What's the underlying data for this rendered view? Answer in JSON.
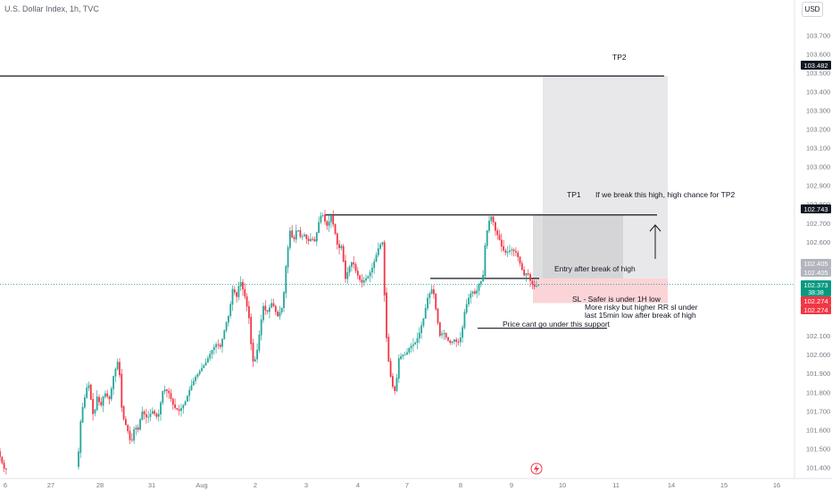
{
  "header": {
    "title": "U.S. Dollar Index, 1h, TVC",
    "currency": "USD"
  },
  "colors": {
    "up": "#26a69a",
    "down": "#f23645",
    "axis_text": "#787b86",
    "tp_zone": "#e0e0e3",
    "sl_zone": "#f9c9cd",
    "current": "#089981",
    "tag_dark": "#131722",
    "tag_red": "#f23645",
    "tag_green": "#089981",
    "tag_grey": "#b2b5be"
  },
  "chart_data": {
    "type": "candlestick",
    "symbol": "U.S. Dollar Index",
    "interval": "1h",
    "source": "TVC",
    "ylim": [
      101.35,
      103.82
    ],
    "y_ticks": [
      "103.700",
      "103.600",
      "103.500",
      "103.400",
      "103.300",
      "103.200",
      "103.100",
      "103.000",
      "102.900",
      "102.800",
      "102.700",
      "102.600",
      "102.500",
      "102.100",
      "102.000",
      "101.900",
      "101.800",
      "101.700",
      "101.600",
      "101.500",
      "101.400"
    ],
    "x_ticks": [
      "6",
      "27",
      "28",
      "31",
      "Aug",
      "2",
      "3",
      "4",
      "7",
      "8",
      "9",
      "10",
      "11",
      "14",
      "15",
      "16"
    ],
    "price_tags": [
      {
        "id": "tp2",
        "value": "103.482",
        "style": "dark"
      },
      {
        "id": "tp1",
        "value": "102.743",
        "style": "dark"
      },
      {
        "id": "entry-a",
        "value": "102.405",
        "style": "grey"
      },
      {
        "id": "entry-b",
        "value": "102.405",
        "style": "grey"
      },
      {
        "id": "current",
        "value": "102.373",
        "sub": "38:38",
        "style": "green"
      },
      {
        "id": "sl-a",
        "value": "102.274",
        "style": "red"
      },
      {
        "id": "sl-b",
        "value": "102.274",
        "style": "red"
      }
    ],
    "levels": {
      "tp2": 103.482,
      "tp1": 102.743,
      "entry": 102.405,
      "current": 102.373,
      "sl": 102.274,
      "support": 102.14
    },
    "annotations": {
      "tp2": "TP2",
      "tp1": "TP1",
      "tp2_note": "If we break this high, high chance for TP2",
      "entry": "Entry after break of high",
      "sl_1": "SL - Safer is under 1H low",
      "sl_2": "More risky but higher RR sl under",
      "sl_3": "last 15min low after break of high",
      "support": "Price cant go under this support"
    },
    "path": [
      [
        0,
        101.47
      ],
      [
        6,
        101.39
      ],
      [
        60,
        101.46
      ],
      [
        88,
        101.4
      ],
      [
        92,
        101.68
      ],
      [
        100,
        101.86
      ],
      [
        106,
        101.66
      ],
      [
        110,
        101.78
      ],
      [
        114,
        101.72
      ],
      [
        118,
        101.8
      ],
      [
        124,
        101.76
      ],
      [
        128,
        101.88
      ],
      [
        134,
        101.98
      ],
      [
        138,
        101.68
      ],
      [
        144,
        101.6
      ],
      [
        148,
        101.52
      ],
      [
        152,
        101.62
      ],
      [
        156,
        101.6
      ],
      [
        160,
        101.7
      ],
      [
        166,
        101.66
      ],
      [
        172,
        101.7
      ],
      [
        178,
        101.66
      ],
      [
        184,
        101.82
      ],
      [
        190,
        101.8
      ],
      [
        196,
        101.72
      ],
      [
        202,
        101.7
      ],
      [
        208,
        101.74
      ],
      [
        214,
        101.82
      ],
      [
        220,
        101.88
      ],
      [
        226,
        101.92
      ],
      [
        232,
        101.96
      ],
      [
        238,
        102.02
      ],
      [
        244,
        102.06
      ],
      [
        248,
        102.04
      ],
      [
        254,
        102.16
      ],
      [
        258,
        102.22
      ],
      [
        262,
        102.36
      ],
      [
        266,
        102.3
      ],
      [
        270,
        102.4
      ],
      [
        276,
        102.3
      ],
      [
        280,
        102.2
      ],
      [
        284,
        101.96
      ],
      [
        288,
        101.98
      ],
      [
        292,
        102.12
      ],
      [
        296,
        102.26
      ],
      [
        300,
        102.22
      ],
      [
        306,
        102.28
      ],
      [
        312,
        102.2
      ],
      [
        318,
        102.26
      ],
      [
        322,
        102.5
      ],
      [
        326,
        102.66
      ],
      [
        330,
        102.6
      ],
      [
        334,
        102.68
      ],
      [
        338,
        102.62
      ],
      [
        342,
        102.64
      ],
      [
        346,
        102.6
      ],
      [
        350,
        102.62
      ],
      [
        354,
        102.6
      ],
      [
        358,
        102.7
      ],
      [
        362,
        102.76
      ],
      [
        364,
        102.72
      ],
      [
        368,
        102.68
      ],
      [
        372,
        102.74
      ],
      [
        376,
        102.66
      ],
      [
        380,
        102.56
      ],
      [
        384,
        102.58
      ],
      [
        388,
        102.4
      ],
      [
        392,
        102.46
      ],
      [
        396,
        102.5
      ],
      [
        400,
        102.44
      ],
      [
        406,
        102.38
      ],
      [
        410,
        102.4
      ],
      [
        414,
        102.42
      ],
      [
        418,
        102.46
      ],
      [
        422,
        102.52
      ],
      [
        426,
        102.58
      ],
      [
        430,
        102.6
      ],
      [
        432,
        102.3
      ],
      [
        434,
        102.1
      ],
      [
        436,
        101.98
      ],
      [
        440,
        101.84
      ],
      [
        444,
        101.8
      ],
      [
        448,
        101.98
      ],
      [
        452,
        102.0
      ],
      [
        456,
        102.0
      ],
      [
        460,
        102.04
      ],
      [
        466,
        102.06
      ],
      [
        470,
        102.1
      ],
      [
        476,
        102.2
      ],
      [
        480,
        102.3
      ],
      [
        486,
        102.36
      ],
      [
        490,
        102.22
      ],
      [
        494,
        102.1
      ],
      [
        498,
        102.12
      ],
      [
        502,
        102.08
      ],
      [
        506,
        102.06
      ],
      [
        510,
        102.08
      ],
      [
        514,
        102.06
      ],
      [
        518,
        102.1
      ],
      [
        522,
        102.24
      ],
      [
        526,
        102.3
      ],
      [
        530,
        102.34
      ],
      [
        534,
        102.32
      ],
      [
        538,
        102.38
      ],
      [
        542,
        102.4
      ],
      [
        544,
        102.56
      ],
      [
        548,
        102.7
      ],
      [
        552,
        102.74
      ],
      [
        556,
        102.66
      ],
      [
        560,
        102.62
      ],
      [
        564,
        102.56
      ],
      [
        568,
        102.54
      ],
      [
        574,
        102.56
      ],
      [
        580,
        102.54
      ],
      [
        584,
        102.48
      ],
      [
        588,
        102.42
      ],
      [
        592,
        102.44
      ],
      [
        596,
        102.38
      ],
      [
        600,
        102.36
      ],
      [
        604,
        102.37
      ]
    ]
  }
}
